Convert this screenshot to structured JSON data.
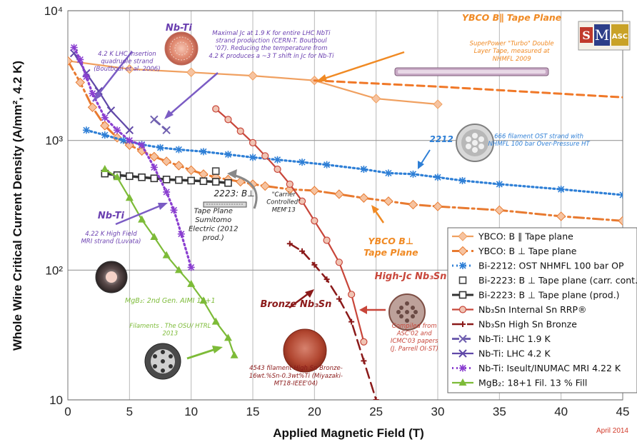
{
  "chart_data": {
    "type": "line",
    "xlabel": "Applied Magnetic Field (T)",
    "ylabel": "Whole Wire Critical Current Density (A/mm², 4.2 K)",
    "xlim": [
      0,
      45
    ],
    "ylim": [
      10,
      10000
    ],
    "yscale": "log",
    "grid": true,
    "legend_position": "right",
    "x_ticks": [
      "0",
      "5",
      "10",
      "15",
      "20",
      "25",
      "30",
      "35",
      "40",
      "45"
    ],
    "y_ticks": [
      {
        "value": 10,
        "label": "10"
      },
      {
        "value": 100,
        "label": "10²"
      },
      {
        "value": 1000,
        "label": "10³"
      },
      {
        "value": 10000,
        "label": "10⁴"
      }
    ],
    "date_note": "April 2014",
    "series": [
      {
        "name": "YBCO: B ∥ Tape plane",
        "color": "#f0a060",
        "line": "solid",
        "marker": "diamond",
        "points": [
          [
            0,
            4100
          ],
          [
            5,
            3550
          ],
          [
            10,
            3350
          ],
          [
            15,
            3150
          ],
          [
            20,
            2900
          ],
          [
            25,
            2100
          ],
          [
            30,
            1900
          ]
        ]
      },
      {
        "name": "YBCO: B ∥ Tape plane (extrapolation)",
        "legend": false,
        "color": "#f07828",
        "line": "dashed",
        "marker": "none",
        "points": [
          [
            20,
            2900
          ],
          [
            30,
            2600
          ],
          [
            45,
            2150
          ]
        ]
      },
      {
        "name": "YBCO: B ⊥ Tape plane",
        "color": "#e87a30",
        "line": "dashdot",
        "marker": "diamond",
        "points": [
          [
            0,
            4100
          ],
          [
            1,
            2800
          ],
          [
            2,
            1800
          ],
          [
            3,
            1300
          ],
          [
            4,
            1050
          ],
          [
            5,
            920
          ],
          [
            6,
            830
          ],
          [
            7,
            750
          ],
          [
            8,
            690
          ],
          [
            9,
            640
          ],
          [
            10,
            590
          ],
          [
            11,
            550
          ],
          [
            12,
            520
          ],
          [
            13,
            500
          ],
          [
            14,
            480
          ],
          [
            15,
            460
          ],
          [
            16,
            445
          ],
          [
            18,
            420
          ],
          [
            20,
            410
          ],
          [
            22,
            385
          ],
          [
            24,
            360
          ],
          [
            26,
            340
          ],
          [
            28,
            320
          ],
          [
            30,
            310
          ],
          [
            35,
            290
          ],
          [
            40,
            260
          ],
          [
            45,
            240
          ]
        ]
      },
      {
        "name": "Bi-2212: OST NHMFL 100 bar OP",
        "color": "#2e7fd6",
        "line": "dotted",
        "marker": "asterisk",
        "points": [
          [
            1.5,
            1200
          ],
          [
            3,
            1100
          ],
          [
            4.5,
            1000
          ],
          [
            6,
            930
          ],
          [
            7.5,
            880
          ],
          [
            9,
            850
          ],
          [
            11,
            820
          ],
          [
            13,
            780
          ],
          [
            15,
            740
          ],
          [
            17,
            710
          ],
          [
            19,
            680
          ],
          [
            21,
            650
          ],
          [
            24,
            600
          ],
          [
            26,
            560
          ],
          [
            28,
            550
          ],
          [
            30,
            520
          ],
          [
            32,
            490
          ],
          [
            35,
            460
          ],
          [
            40,
            420
          ],
          [
            45,
            380
          ]
        ]
      },
      {
        "name": "Bi-2223: B ⊥ Tape plane (carr. cont.)",
        "color": "#444444",
        "line": "none",
        "marker": "open-square",
        "points": [
          [
            12,
            580
          ]
        ]
      },
      {
        "name": "Bi-2223: B ⊥ Tape plane (prod.)",
        "color": "#333333",
        "line": "solid-thick",
        "marker": "open-square",
        "points": [
          [
            3,
            555
          ],
          [
            4,
            540
          ],
          [
            5,
            530
          ],
          [
            6,
            520
          ],
          [
            7,
            510
          ],
          [
            8,
            500
          ],
          [
            9,
            495
          ],
          [
            10,
            490
          ],
          [
            11,
            485
          ],
          [
            12,
            480
          ],
          [
            13,
            470
          ]
        ]
      },
      {
        "name": "Nb₃Sn Internal Sn RRP®",
        "color": "#c8463a",
        "line": "solid",
        "marker": "circle",
        "points": [
          [
            12,
            1750
          ],
          [
            13,
            1450
          ],
          [
            14,
            1180
          ],
          [
            15,
            960
          ],
          [
            16,
            760
          ],
          [
            17,
            600
          ],
          [
            18,
            460
          ],
          [
            19,
            340
          ],
          [
            20,
            240
          ],
          [
            21,
            170
          ],
          [
            22,
            115
          ],
          [
            23,
            65
          ],
          [
            24,
            28
          ]
        ]
      },
      {
        "name": "Nb₃Sn High Sn Bronze",
        "color": "#8b1a1a",
        "line": "longdash",
        "marker": "plus",
        "points": [
          [
            18,
            160
          ],
          [
            19,
            140
          ],
          [
            20,
            110
          ],
          [
            21,
            85
          ],
          [
            22,
            60
          ],
          [
            23,
            40
          ],
          [
            24,
            20
          ],
          [
            25,
            10
          ]
        ]
      },
      {
        "name": "Nb-Ti: LHC 1.9 K",
        "color": "#7060b0",
        "line": "dashed",
        "marker": "x",
        "points": [
          [
            7,
            1450
          ],
          [
            8,
            1200
          ]
        ]
      },
      {
        "name": "Nb-Ti: LHC 4.2 K",
        "color": "#6048a8",
        "line": "solid",
        "marker": "x",
        "points": [
          [
            0.5,
            4700
          ],
          [
            1.5,
            3300
          ],
          [
            2.5,
            2400
          ],
          [
            3.5,
            1700
          ],
          [
            5,
            1200
          ]
        ]
      },
      {
        "name": "Nb-Ti: Iseult/INUMAC MRI 4.22 K",
        "color": "#8a3fd0",
        "line": "dotted",
        "marker": "asterisk",
        "points": [
          [
            0.5,
            5200
          ],
          [
            1,
            4200
          ],
          [
            1.5,
            3100
          ],
          [
            2,
            2300
          ],
          [
            3,
            1500
          ],
          [
            4,
            1200
          ],
          [
            5,
            1000
          ],
          [
            6,
            920
          ],
          [
            7,
            620
          ],
          [
            8,
            400
          ],
          [
            8.6,
            290
          ],
          [
            9.2,
            190
          ],
          [
            10,
            105
          ]
        ]
      },
      {
        "name": "MgB₂: 18+1 Fil. 13 % Fill",
        "color": "#7dbb38",
        "line": "solid",
        "marker": "triangle",
        "points": [
          [
            3,
            600
          ],
          [
            4,
            520
          ],
          [
            5,
            360
          ],
          [
            6,
            245
          ],
          [
            7,
            180
          ],
          [
            8,
            130
          ],
          [
            9,
            100
          ],
          [
            10,
            78
          ],
          [
            11,
            58
          ],
          [
            12,
            40
          ],
          [
            13,
            30
          ],
          [
            13.5,
            22
          ]
        ]
      }
    ],
    "annotations": [
      {
        "id": "nbti_title",
        "text": "Nb-Ti",
        "x": 9,
        "y": 7000,
        "color": "#6a3fb0",
        "size": 13,
        "bold": true
      },
      {
        "id": "lhc_insertion",
        "lines": [
          "4.2 K LHC insertion",
          "quadruole strand",
          "(Boutboul et al. 2006)"
        ],
        "x": 4.8,
        "y": 4500,
        "color": "#6a3fb0",
        "size": 8.5
      },
      {
        "id": "maximal_jc",
        "lines": [
          "Maximal Jc at 1.9 K for entire LHC NbTi",
          "strand production (CERN-T. Boutboul",
          "'07). Reducing the temperature from",
          "4.2 K produces a ~3 T shift in Jc for Nb-Ti"
        ],
        "x": 16.5,
        "y": 6500,
        "color": "#6a3fb0",
        "size": 8.5
      },
      {
        "id": "ybco_par",
        "text": "YBCO B∥ Tape Plane",
        "x": 36,
        "y": 8400,
        "color": "#f08a24",
        "size": 12.5,
        "bold": true
      },
      {
        "id": "superpower",
        "lines": [
          "SuperPower \"Turbo\" Double",
          "Layer Tape, measured at",
          "NHMFL 2009"
        ],
        "x": 36,
        "y": 5400,
        "color": "#f08a24",
        "size": 8.5
      },
      {
        "id": "bi2212",
        "text": "2212",
        "x": 30.3,
        "y": 970,
        "color": "#2e7fd6",
        "size": 12,
        "bold": true
      },
      {
        "id": "ost_strand",
        "lines": [
          "666 filament OST strand with",
          "NHMFL 100 bar Over-Pressure HT"
        ],
        "x": 38.2,
        "y": 1040,
        "color": "#2e7fd6",
        "size": 8.5
      },
      {
        "id": "bi2223_title",
        "text": "2223: B⊥",
        "x": 13.5,
        "y": 370,
        "color": "#222",
        "size": 12
      },
      {
        "id": "bi2223_sub",
        "lines": [
          "Tape Plane",
          "Sumitomo",
          "Electric (2012",
          "prod.)"
        ],
        "x": 11.8,
        "y": 275,
        "color": "#222",
        "size": 10
      },
      {
        "id": "carrier",
        "lines": [
          "\"Carrier",
          "Controlled\"",
          "MEM'13"
        ],
        "x": 17.5,
        "y": 370,
        "color": "#222",
        "size": 8.5
      },
      {
        "id": "ybco_perp",
        "lines": [
          "YBCO B⊥",
          "Tape Plane"
        ],
        "x": 26.2,
        "y": 158,
        "color": "#f08a24",
        "size": 12.5,
        "bold": true
      },
      {
        "id": "nbti_left",
        "text": "Nb-Ti",
        "x": 3.5,
        "y": 250,
        "color": "#6a3fb0",
        "size": 13,
        "bold": true
      },
      {
        "id": "mri_strand",
        "lines": [
          "4.22 K High Field",
          "MRI strand (Luvata)"
        ],
        "x": 3.5,
        "y": 185,
        "color": "#6a3fb0",
        "size": 8.5
      },
      {
        "id": "mgb2_title",
        "text": "MgB₂: 2nd Gen. AIMI 18+1",
        "x": 8.3,
        "y": 56,
        "color": "#7dbb38",
        "size": 9.5
      },
      {
        "id": "mgb2_sub",
        "lines": [
          "Filaments . The OSU/ HTRL",
          "2013"
        ],
        "x": 8.3,
        "y": 36,
        "color": "#7dbb38",
        "size": 8.5
      },
      {
        "id": "bronze",
        "text": "Bronze Nb₃Sn",
        "x": 18.5,
        "y": 52,
        "color": "#8b1a1a",
        "size": 13,
        "bold": true
      },
      {
        "id": "bronze_sub",
        "lines": [
          "4543 filament High Sn Bronze-",
          "16wt.%Sn-0.3wt%Ti (Miyazaki-",
          "MT18-IEEE'04)"
        ],
        "x": 18.5,
        "y": 17,
        "color": "#8b1a1a",
        "size": 8.5
      },
      {
        "id": "highjc",
        "text": "High-Jc Nb₃Sn",
        "x": 27.8,
        "y": 85,
        "color": "#c8463a",
        "size": 13,
        "bold": true
      },
      {
        "id": "compiled",
        "lines": [
          "Compiled from",
          "ASC'02 and",
          "ICMC'03 papers",
          "(J. Parrell OI-ST)"
        ],
        "x": 28.1,
        "y": 36,
        "color": "#c8463a",
        "size": 8.5
      }
    ]
  },
  "logo": {
    "letters": "S M ASC",
    "colors": {
      "s": "#c0392b",
      "m": "#2c3e88",
      "asc": "#c9a227"
    }
  }
}
